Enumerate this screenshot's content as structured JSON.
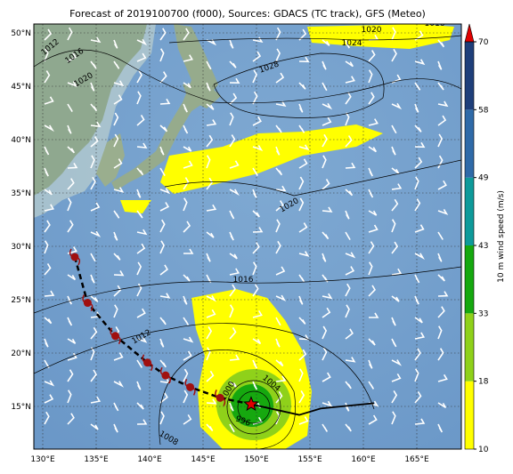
{
  "title": "Forecast of 2019100700 (f000), Sources: GDACS (TC track), GFS (Meteo)",
  "lat_labels": [
    "50°N",
    "45°N",
    "40°N",
    "35°N",
    "30°N",
    "25°N",
    "20°N",
    "15°N"
  ],
  "lon_labels": [
    "130°E",
    "135°E",
    "140°E",
    "145°E",
    "150°E",
    "155°E",
    "160°E",
    "165°E"
  ],
  "isobar_labels": [
    "1012",
    "1016",
    "1020",
    "1020",
    "1016",
    "1024",
    "1028",
    "1020",
    "1016",
    "1012",
    "1000",
    "1004",
    "996",
    "1008"
  ],
  "colorbar": {
    "label": "10 m wind speed (m/s)",
    "ticks": [
      10,
      18,
      33,
      43,
      49,
      58,
      70
    ],
    "colors": [
      "#ffff00",
      "#8fd11a",
      "#16a80f",
      "#0e9a9a",
      "#2f6aa8",
      "#1f3f7a",
      "#152a55"
    ],
    "extend_color": "#e00000"
  },
  "track": {
    "lon": [
      133.0,
      134.2,
      136.8,
      139.8,
      141.5,
      143.8,
      146.6
    ],
    "lat": [
      29.0,
      24.7,
      21.6,
      19.1,
      17.9,
      16.8,
      15.8
    ]
  },
  "current": {
    "lon": 149.5,
    "lat": 15.2
  },
  "forecast_track": {
    "lon": [
      149.5,
      154.0,
      156.0,
      161.0
    ],
    "lat": [
      15.2,
      14.2,
      14.8,
      15.3
    ]
  }
}
